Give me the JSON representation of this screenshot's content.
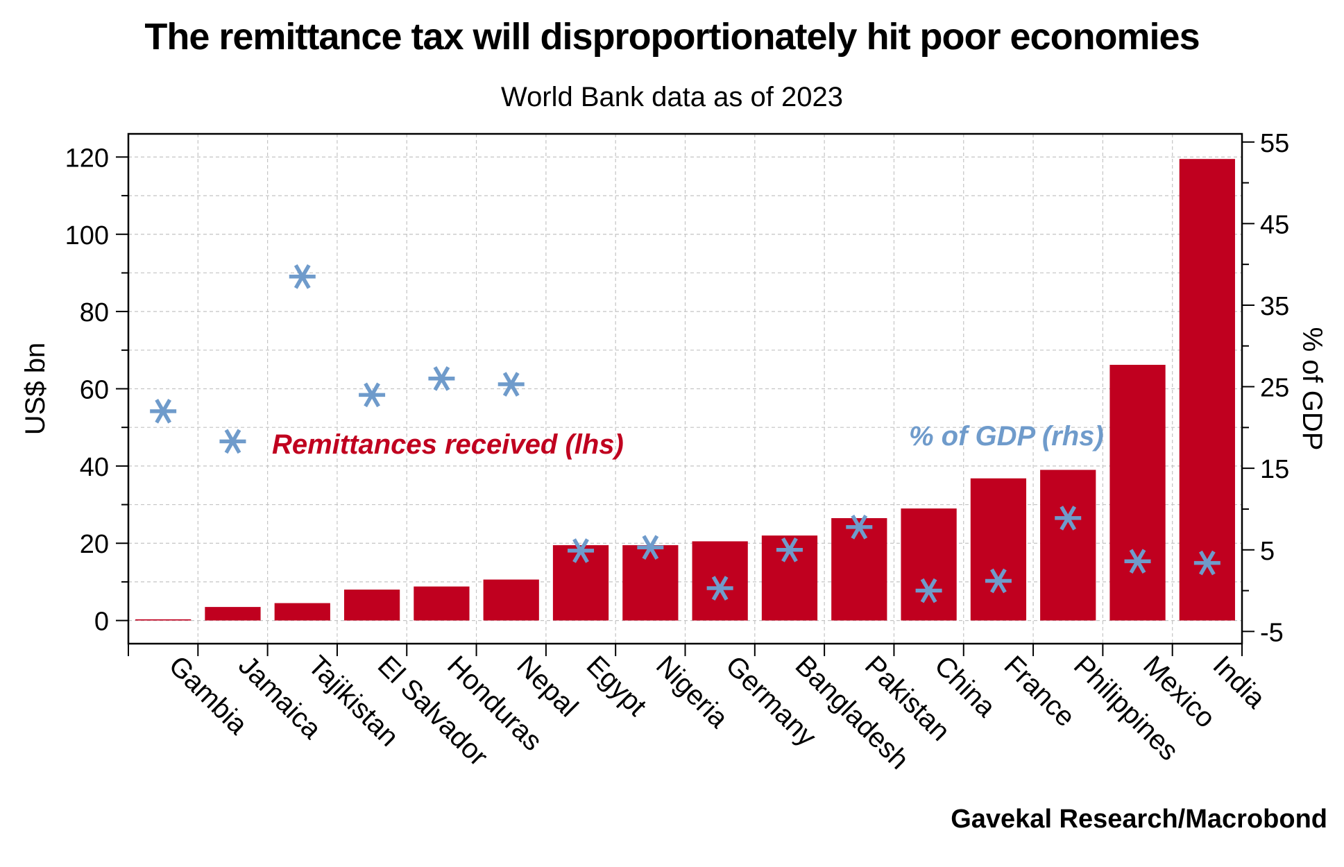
{
  "chart_data": {
    "type": "bar",
    "title": "The remittance tax will disproportionately hit poor economies",
    "subtitle": "World Bank data as of 2023",
    "source": "Gavekal Research/Macrobond",
    "categories": [
      "Gambia",
      "Jamaica",
      "Tajikistan",
      "El Salvador",
      "Honduras",
      "Nepal",
      "Egypt",
      "Nigeria",
      "Germany",
      "Bangladesh",
      "Pakistan",
      "China",
      "France",
      "Philippines",
      "Mexico",
      "India"
    ],
    "series": [
      {
        "name": "Remittances received (lhs)",
        "axis": "left",
        "type": "bar",
        "color": "#c0001f",
        "values": [
          0.3,
          3.5,
          4.5,
          8.0,
          8.8,
          10.6,
          19.5,
          19.5,
          20.5,
          22.0,
          26.5,
          29.0,
          36.8,
          39.0,
          66.2,
          119.5
        ]
      },
      {
        "name": "% of GDP (rhs)",
        "axis": "right",
        "type": "scatter",
        "marker": "asterisk",
        "color": "#6f9bcb",
        "values": [
          22.0,
          18.3,
          38.5,
          24.0,
          26.0,
          25.3,
          4.9,
          5.3,
          0.3,
          5.0,
          7.8,
          0.0,
          1.2,
          8.9,
          3.6,
          3.4
        ]
      }
    ],
    "ylabel": "US$ bn",
    "ylabel_right": "% of GDP",
    "ylim": [
      -6,
      126
    ],
    "yticks": [
      0,
      20,
      40,
      60,
      80,
      100,
      120
    ],
    "ylim_right": [
      -6.5,
      56
    ],
    "yticks_right": [
      -5,
      5,
      15,
      25,
      35,
      45,
      55
    ],
    "grid": true,
    "annotations": [
      {
        "text": "Remittances received (lhs)",
        "color": "#c0001f"
      },
      {
        "text": "% of GDP (rhs)",
        "color": "#6f9bcb"
      }
    ]
  }
}
